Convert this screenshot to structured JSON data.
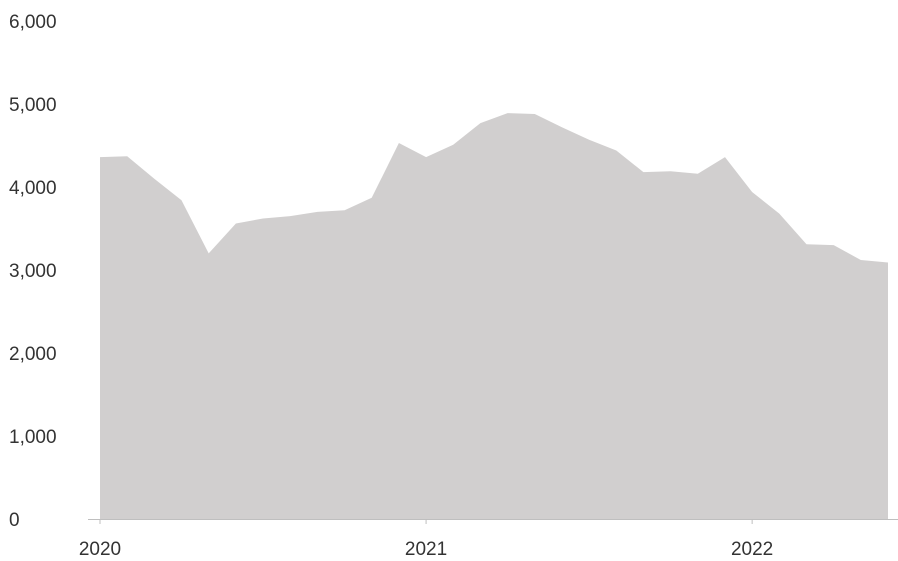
{
  "chart_data": {
    "type": "area",
    "title": "",
    "xlabel": "",
    "ylabel": "",
    "ylim": [
      0,
      6000
    ],
    "yticks": [
      0,
      1000,
      2000,
      3000,
      4000,
      5000,
      6000
    ],
    "ytick_labels": [
      "0",
      "1,000",
      "2,000",
      "3,000",
      "4,000",
      "5,000",
      "6,000"
    ],
    "xticks": [
      {
        "x": "2020-01",
        "label": "2020"
      },
      {
        "x": "2021-01",
        "label": "2021"
      },
      {
        "x": "2022-01",
        "label": "2022"
      }
    ],
    "grid": false,
    "legend": "none",
    "colors": {
      "fill": "#d1cfcf",
      "axis": "#bfbfbf",
      "text": "#333333"
    },
    "series": [
      {
        "x": [
          "2020-01",
          "2020-02",
          "2020-03",
          "2020-04",
          "2020-05",
          "2020-06",
          "2020-07",
          "2020-08",
          "2020-09",
          "2020-10",
          "2020-11",
          "2020-12",
          "2021-01",
          "2021-02",
          "2021-03",
          "2021-04",
          "2021-05",
          "2021-06",
          "2021-07",
          "2021-08",
          "2021-09",
          "2021-10",
          "2021-11",
          "2021-12",
          "2022-01",
          "2022-02",
          "2022-03",
          "2022-04",
          "2022-05",
          "2022-06"
        ],
        "values": [
          4360,
          4370,
          4100,
          3840,
          3200,
          3560,
          3620,
          3650,
          3700,
          3720,
          3870,
          4530,
          4360,
          4510,
          4770,
          4890,
          4880,
          4720,
          4570,
          4440,
          4180,
          4190,
          4160,
          4360,
          3940,
          3680,
          3310,
          3300,
          3120,
          3090
        ]
      }
    ]
  }
}
